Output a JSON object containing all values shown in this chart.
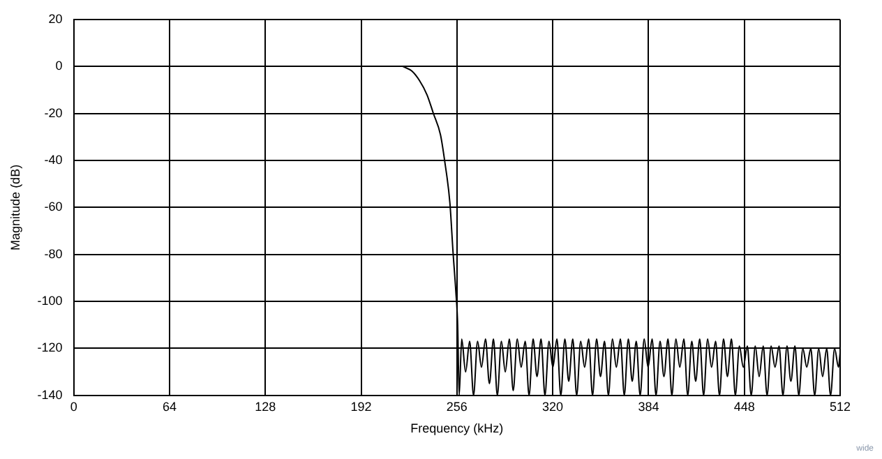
{
  "chart_data": {
    "type": "line",
    "xlabel": "Frequency (kHz)",
    "ylabel": "Magnitude (dB)",
    "xlim": [
      0,
      512
    ],
    "xticks": [
      0,
      64,
      128,
      192,
      256,
      320,
      384,
      448,
      512
    ],
    "ylim": [
      -140,
      20
    ],
    "yticks": [
      -140,
      -120,
      -100,
      -80,
      -60,
      -40,
      -20,
      0,
      20
    ],
    "grid": true,
    "legend": false,
    "marker": "none",
    "line_style": "solid",
    "annotations": [
      "wide"
    ],
    "series": [
      {
        "color": "#000000",
        "x": [
          220,
          226,
          231,
          236,
          240.3,
          245,
          248,
          251.3,
          253.4,
          255.3,
          256.5,
          257.5,
          259.2,
          261.8,
          264.5,
          267.1,
          269.8,
          272.4,
          275.1,
          277.7,
          280.4,
          283.0,
          285.7,
          288.3,
          291.0,
          293.6,
          296.3,
          298.9,
          301.6,
          304.2,
          306.9,
          309.5,
          312.2,
          314.8,
          317.5,
          320.1,
          322.8,
          325.4,
          328.1,
          330.7,
          333.4,
          336.0,
          338.7,
          341.3,
          344.0,
          346.6,
          349.3,
          351.9,
          354.6,
          357.2,
          359.9,
          362.5,
          365.2,
          367.8,
          370.5,
          373.1,
          375.8,
          378.4,
          381.1,
          383.7,
          386.4,
          389.0,
          391.7,
          394.3,
          397.0,
          399.6,
          402.3,
          404.9,
          407.6,
          410.2,
          412.9,
          415.5,
          418.2,
          420.8,
          423.5,
          426.1,
          428.8,
          431.4,
          434.1,
          436.7,
          439.4,
          442.0,
          444.7,
          447.3,
          450.0,
          452.6,
          455.3,
          457.9,
          460.6,
          463.2,
          465.9,
          468.5,
          471.2,
          473.8,
          476.5,
          479.1,
          481.8,
          484.4,
          487.1,
          489.7,
          492.4,
          495.0,
          497.7,
          500.3,
          503.0,
          505.6,
          508.3,
          510.9,
          512
        ],
        "values": [
          0,
          -2,
          -6,
          -12,
          -20,
          -29,
          -41,
          -58,
          -79,
          -96,
          -110,
          -140,
          -116,
          -130,
          -117,
          -140,
          -117,
          -128,
          -116,
          -135,
          -116,
          -140,
          -117,
          -130,
          -116,
          -138,
          -116,
          -128,
          -117,
          -140,
          -116,
          -132,
          -116,
          -140,
          -117,
          -128,
          -116,
          -140,
          -116,
          -134,
          -116,
          -140,
          -117,
          -128,
          -116,
          -140,
          -116,
          -132,
          -117,
          -140,
          -116,
          -128,
          -116,
          -140,
          -116,
          -134,
          -117,
          -140,
          -116,
          -128,
          -116,
          -140,
          -117,
          -132,
          -116,
          -140,
          -116,
          -128,
          -116,
          -140,
          -117,
          -134,
          -116,
          -140,
          -116,
          -128,
          -117,
          -140,
          -116,
          -132,
          -116,
          -140,
          -119,
          -128,
          -119,
          -140,
          -119,
          -132,
          -119,
          -140,
          -119,
          -128,
          -119,
          -140,
          -119,
          -134,
          -119,
          -140,
          -120,
          -128,
          -120,
          -140,
          -120,
          -132,
          -120,
          -140,
          -120,
          -128,
          -122
        ]
      }
    ]
  }
}
